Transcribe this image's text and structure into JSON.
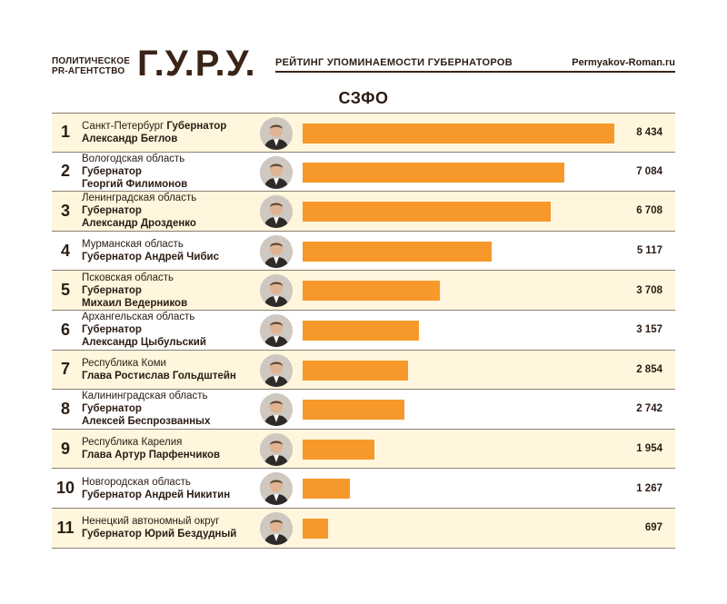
{
  "header": {
    "agency_line1": "ПОЛИТИЧЕСКОЕ",
    "agency_line2": "PR-АГЕНТСТВО",
    "logo": "Г.У.Р.У.",
    "title": "РЕЙТИНГ УПОМИНАЕМОСТИ ГУБЕРНАТОРОВ",
    "site": "Permyakov-Roman.ru"
  },
  "chart_data": {
    "type": "bar",
    "orientation": "horizontal",
    "title": "СЗФО",
    "xlim": [
      0,
      8434
    ],
    "rows": [
      {
        "rank": "1",
        "region": "Санкт-Петербург",
        "name_line1": "Губернатор",
        "name_line2": "Александр Беглов",
        "inline_title": true,
        "value": 8434,
        "value_label": "8 434"
      },
      {
        "rank": "2",
        "region": "Вологодская область",
        "name_line1": "Губернатор",
        "name_line2": "Георгий Филимонов",
        "inline_title": false,
        "value": 7084,
        "value_label": "7 084"
      },
      {
        "rank": "3",
        "region": "Ленинградская область",
        "name_line1": "Губернатор",
        "name_line2": "Александр Дрозденко",
        "inline_title": false,
        "value": 6708,
        "value_label": "6 708"
      },
      {
        "rank": "4",
        "region": "Мурманская область",
        "name_line1": "Губернатор Андрей Чибис",
        "name_line2": "",
        "inline_title": false,
        "value": 5117,
        "value_label": "5 117"
      },
      {
        "rank": "5",
        "region": "Псковская область",
        "name_line1": "Губернатор",
        "name_line2": "Михаил Ведерников",
        "inline_title": false,
        "value": 3708,
        "value_label": "3 708"
      },
      {
        "rank": "6",
        "region": "Архангельская область",
        "name_line1": "Губернатор",
        "name_line2": "Александр Цыбульский",
        "inline_title": false,
        "value": 3157,
        "value_label": "3 157"
      },
      {
        "rank": "7",
        "region": "Республика Коми",
        "name_line1": "Глава Ростислав Гольдштейн",
        "name_line2": "",
        "inline_title": false,
        "value": 2854,
        "value_label": "2 854"
      },
      {
        "rank": "8",
        "region": "Калининградская область",
        "name_line1": "Губернатор",
        "name_line2": "Алексей Беспрозванных",
        "inline_title": false,
        "value": 2742,
        "value_label": "2 742"
      },
      {
        "rank": "9",
        "region": "Республика Карелия",
        "name_line1": "Глава Артур Парфенчиков",
        "name_line2": "",
        "inline_title": false,
        "value": 1954,
        "value_label": "1 954"
      },
      {
        "rank": "10",
        "region": "Новгородская область",
        "name_line1": "Губернатор Андрей Никитин",
        "name_line2": "",
        "inline_title": false,
        "value": 1267,
        "value_label": "1 267"
      },
      {
        "rank": "11",
        "region": "Ненецкий автономный округ",
        "name_line1": "Губернатор Юрий Бездудный",
        "name_line2": "",
        "inline_title": false,
        "value": 697,
        "value_label": "697"
      }
    ]
  },
  "colors": {
    "bar": "#f7982a",
    "row_highlight": "#fff6dd",
    "text": "#2b1c14"
  },
  "icons": {
    "portrait": "person-portrait-icon"
  }
}
